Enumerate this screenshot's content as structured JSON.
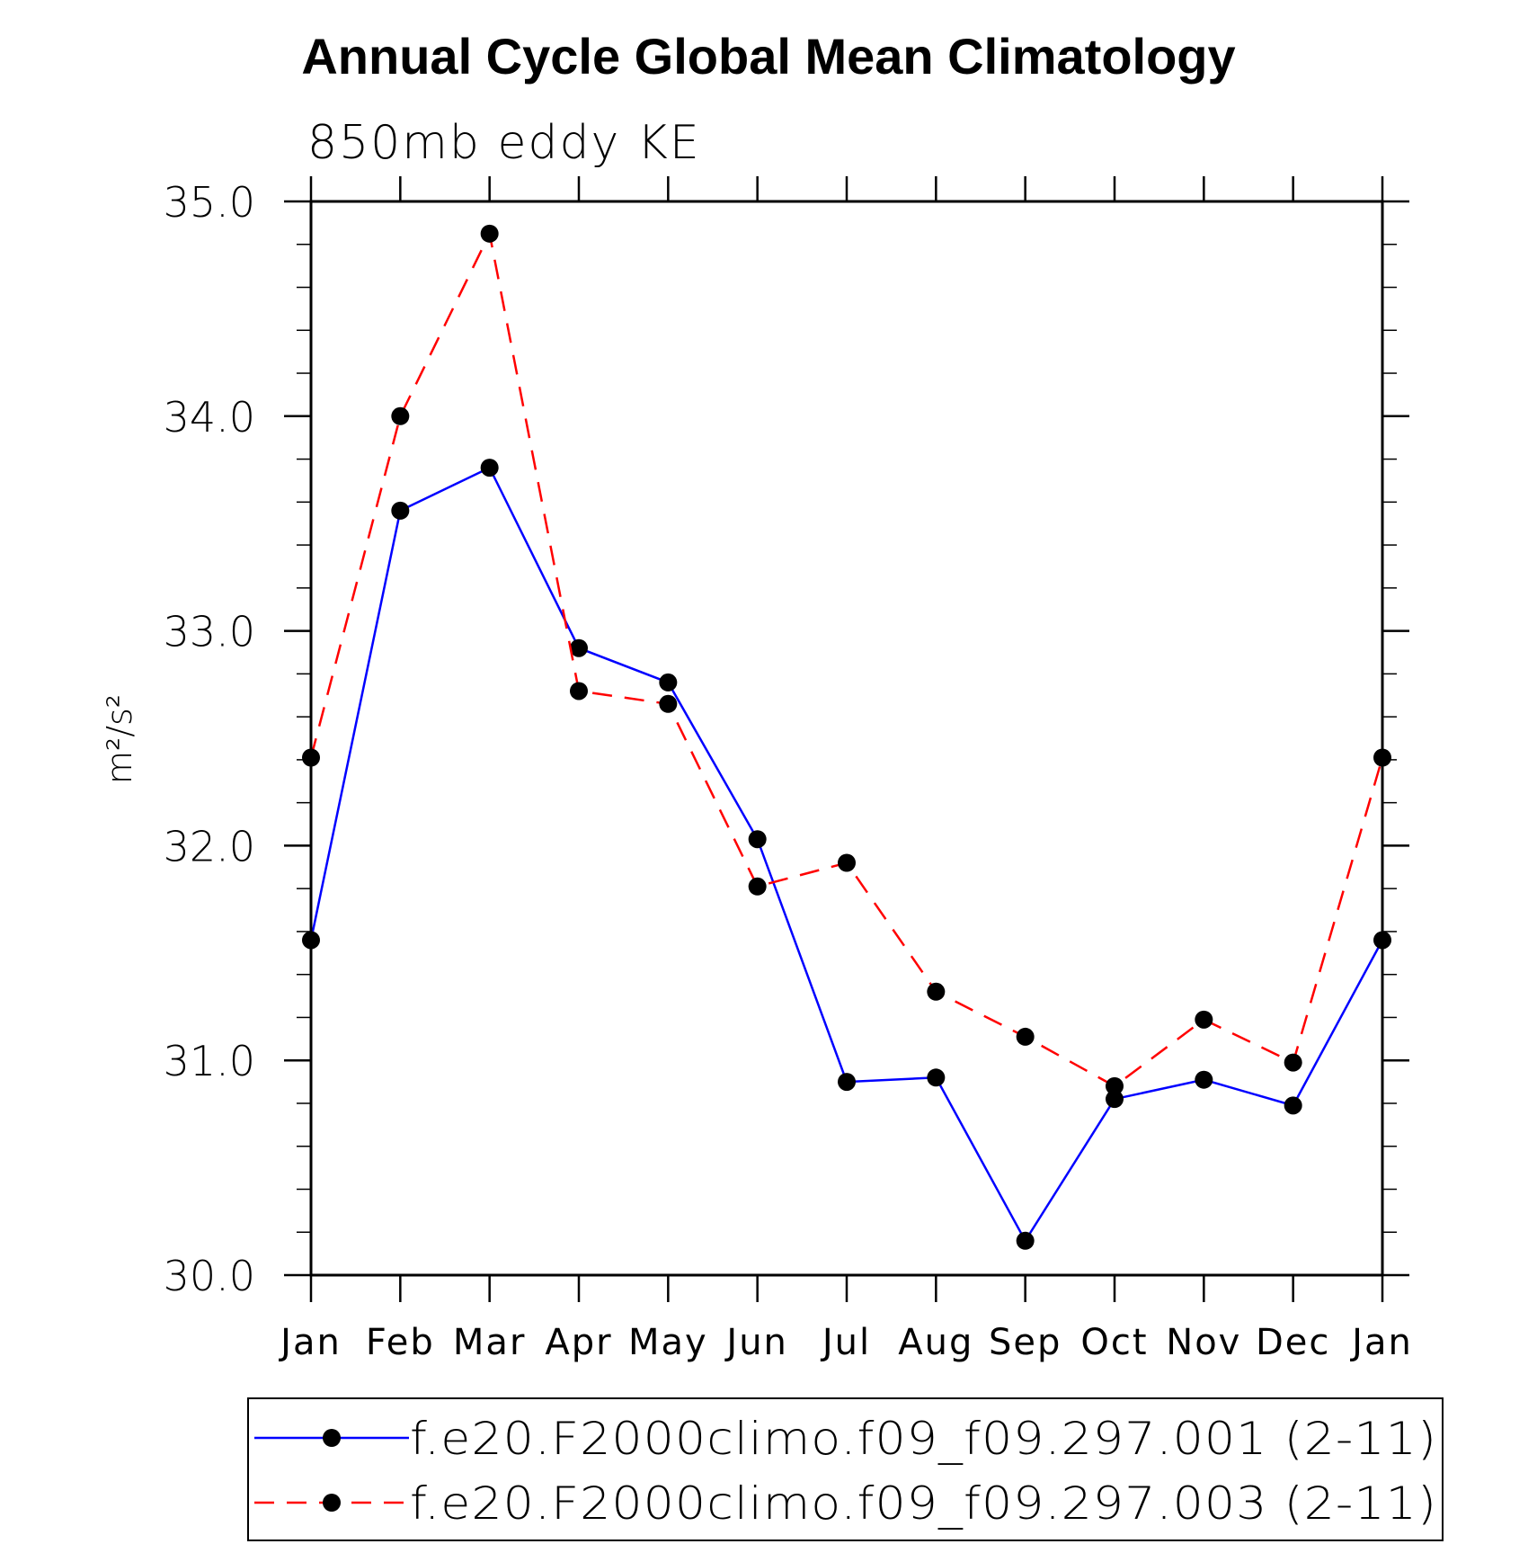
{
  "chart_data": {
    "type": "line",
    "title": "Annual Cycle Global Mean Climatology",
    "subtitle": "850mb eddy KE",
    "ylabel": "m²/s²",
    "xlabel": "",
    "ylim": [
      30.0,
      35.0
    ],
    "yticks": [
      "30.0",
      "31.0",
      "32.0",
      "33.0",
      "34.0",
      "35.0"
    ],
    "categories": [
      "Jan",
      "Feb",
      "Mar",
      "Apr",
      "May",
      "Jun",
      "Jul",
      "Aug",
      "Sep",
      "Oct",
      "Nov",
      "Dec",
      "Jan"
    ],
    "grid": false,
    "legend_position": "bottom",
    "series": [
      {
        "name": "f.e20.F2000climo.f09_f09.297.001 (2-11)",
        "color": "#0000ff",
        "dash": "solid",
        "values": [
          31.56,
          33.56,
          33.76,
          32.92,
          32.76,
          32.03,
          30.9,
          30.92,
          30.16,
          30.82,
          30.91,
          30.79,
          31.56
        ]
      },
      {
        "name": "f.e20.F2000climo.f09_f09.297.003 (2-11)",
        "color": "#ff0000",
        "dash": "dashed",
        "values": [
          32.41,
          34.0,
          34.85,
          32.72,
          32.66,
          31.81,
          31.92,
          31.32,
          31.11,
          30.88,
          31.19,
          30.99,
          32.41
        ]
      }
    ]
  }
}
